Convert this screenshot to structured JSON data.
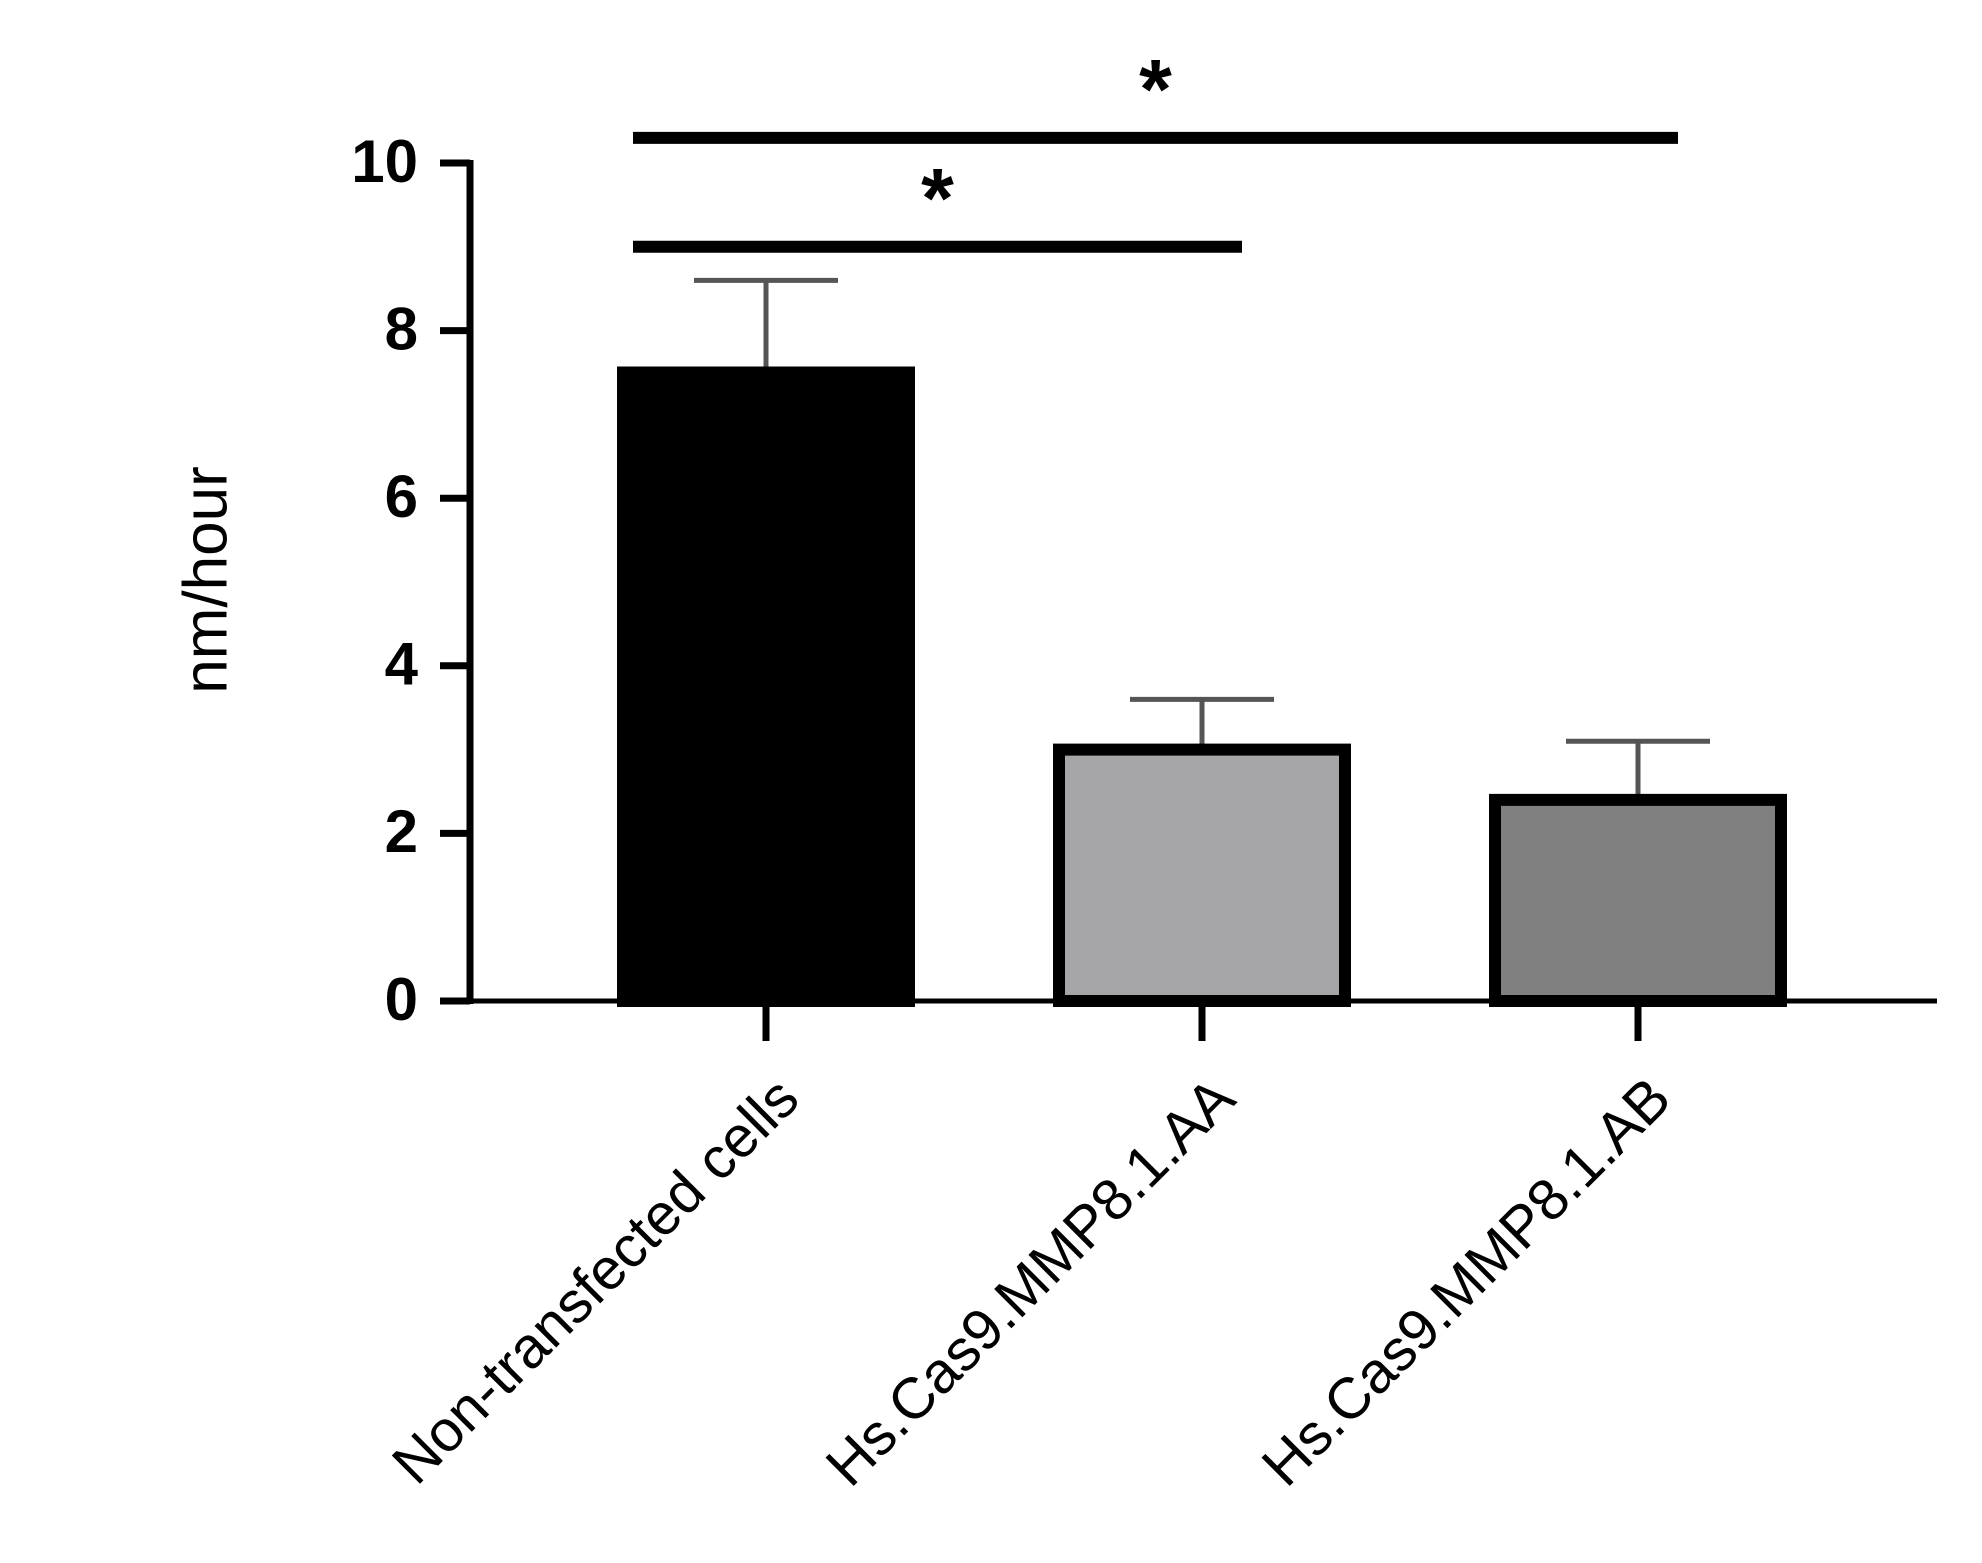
{
  "chart_data": {
    "type": "bar",
    "y_label": "nm/hour",
    "categories": [
      "Non-transfected cells",
      "Hs.Cas9.MMP8.1.AA",
      "Hs.Cas9.MMP8.1.AB"
    ],
    "values": [
      7.5,
      3.0,
      2.4
    ],
    "errors": [
      1.1,
      0.6,
      0.7
    ],
    "colors": [
      "#000000",
      "#a6a6a8",
      "#808080"
    ],
    "ylim": [
      0,
      10
    ],
    "yticks": [
      0,
      2,
      4,
      6,
      8,
      10
    ],
    "annotations": [
      {
        "text": "*",
        "from": 0,
        "to": 2,
        "y": 10.3
      },
      {
        "text": "*",
        "from": 0,
        "to": 1,
        "y": 9.0
      }
    ]
  }
}
